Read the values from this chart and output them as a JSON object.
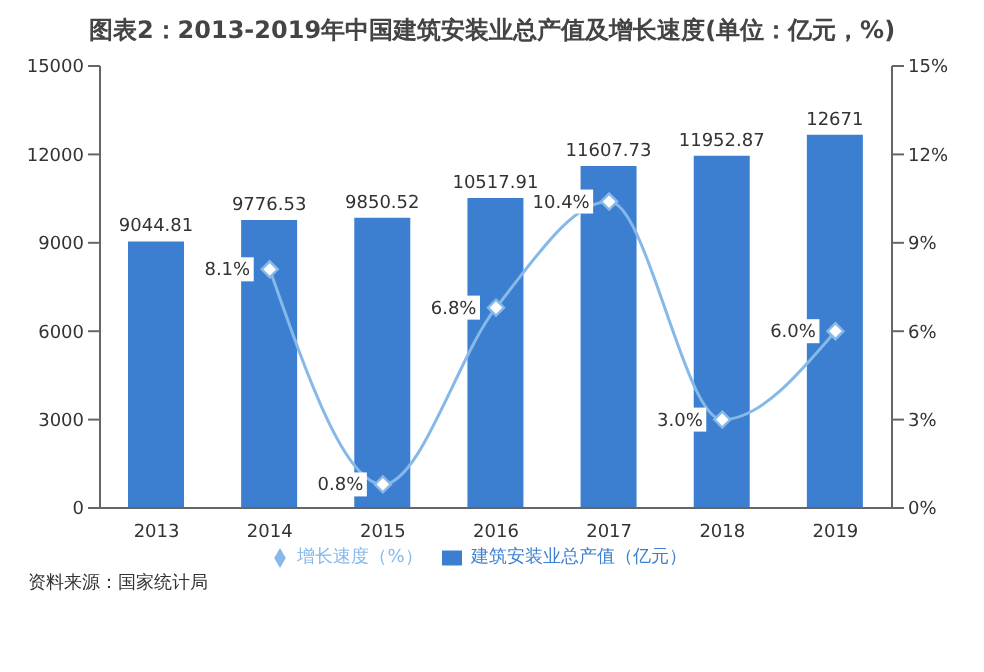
{
  "chart_data": {
    "type": "bar",
    "title": "图表2：2013-2019年中国建筑安装业总产值及增长速度(单位：亿元，%)",
    "categories": [
      "2013",
      "2014",
      "2015",
      "2016",
      "2017",
      "2018",
      "2019"
    ],
    "series": [
      {
        "name": "建筑安装业总产值（亿元）",
        "color": "#3c7fd1",
        "values": [
          9044.81,
          9776.53,
          9850.52,
          10517.91,
          11607.73,
          11952.87,
          12671
        ],
        "value_labels": [
          "9044.81",
          "9776.53",
          "9850.52",
          "10517.91",
          "11607.73",
          "11952.87",
          "12671"
        ]
      },
      {
        "name": "增长速度（%）",
        "type": "line",
        "axis": "y2",
        "color": "#86b8e8",
        "values": [
          null,
          8.1,
          0.8,
          6.8,
          10.4,
          3.0,
          6.0
        ],
        "value_labels": [
          null,
          "8.1%",
          "0.8%",
          "6.8%",
          "10.4%",
          "3.0%",
          "6.0%"
        ]
      }
    ],
    "ylim": [
      0,
      15000
    ],
    "yticks": [
      0,
      3000,
      6000,
      9000,
      12000,
      15000
    ],
    "y2lim": [
      0,
      15
    ],
    "y2ticks": [
      {
        "value": 0,
        "label": "0%"
      },
      {
        "value": 3,
        "label": "3%"
      },
      {
        "value": 6,
        "label": "6%"
      },
      {
        "value": 9,
        "label": "9%"
      },
      {
        "value": 12,
        "label": "12%"
      },
      {
        "value": 15,
        "label": "15%"
      }
    ],
    "marker": "diamond",
    "legend": "bottom",
    "grid": false,
    "annotations": [
      "资料来源：国家统计局"
    ]
  }
}
